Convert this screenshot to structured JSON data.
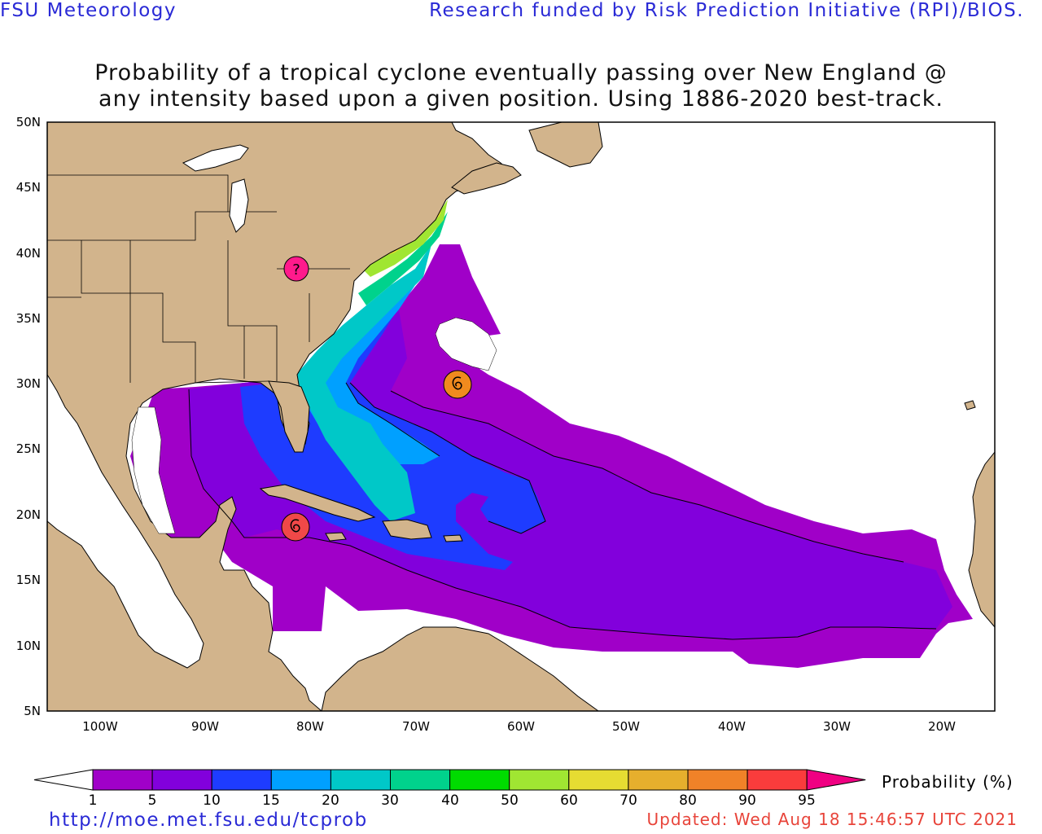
{
  "header": {
    "left": "FSU Meteorology",
    "right": "Research funded by Risk Prediction Initiative (RPI)/BIOS."
  },
  "title": {
    "line1": "Probability of a tropical cyclone eventually passing over New England @",
    "line2": "any intensity based upon a given position.  Using 1886-2020 best-track."
  },
  "map": {
    "lat_labels": [
      "50N",
      "45N",
      "40N",
      "35N",
      "30N",
      "25N",
      "20N",
      "15N",
      "10N",
      "5N"
    ],
    "lon_labels": [
      "100W",
      "90W",
      "80W",
      "70W",
      "60W",
      "50W",
      "40W",
      "30W",
      "20W"
    ],
    "colors": {
      "land": "#d2b48c",
      "ocean": "#ffffff",
      "coast": "#000000"
    },
    "storms": [
      {
        "name": "hurricane-symbol-atlantic",
        "color": "#f08a1e",
        "icon": "hurricane-icon"
      },
      {
        "name": "hurricane-symbol-caribbean",
        "color": "#f04848",
        "icon": "hurricane-icon"
      },
      {
        "name": "disturbance-symbol-ohio",
        "color": "#ff1a8c",
        "icon": "question-mark-icon",
        "glyph": "?"
      }
    ]
  },
  "colorbar": {
    "title": "Probability (%)",
    "labels": [
      "1",
      "5",
      "10",
      "15",
      "20",
      "30",
      "40",
      "50",
      "60",
      "70",
      "80",
      "90",
      "95"
    ],
    "colors": [
      "#a000c8",
      "#8200dc",
      "#1e3cff",
      "#00a0ff",
      "#00c8c8",
      "#00d28c",
      "#00dc00",
      "#a0e632",
      "#e6dc32",
      "#e6af2d",
      "#f08228",
      "#fa3c3c",
      "#f00082"
    ]
  },
  "footer": {
    "url": "http://moe.met.fsu.edu/tcprob",
    "updated": "Updated: Wed Aug 18 15:46:57 UTC 2021"
  }
}
